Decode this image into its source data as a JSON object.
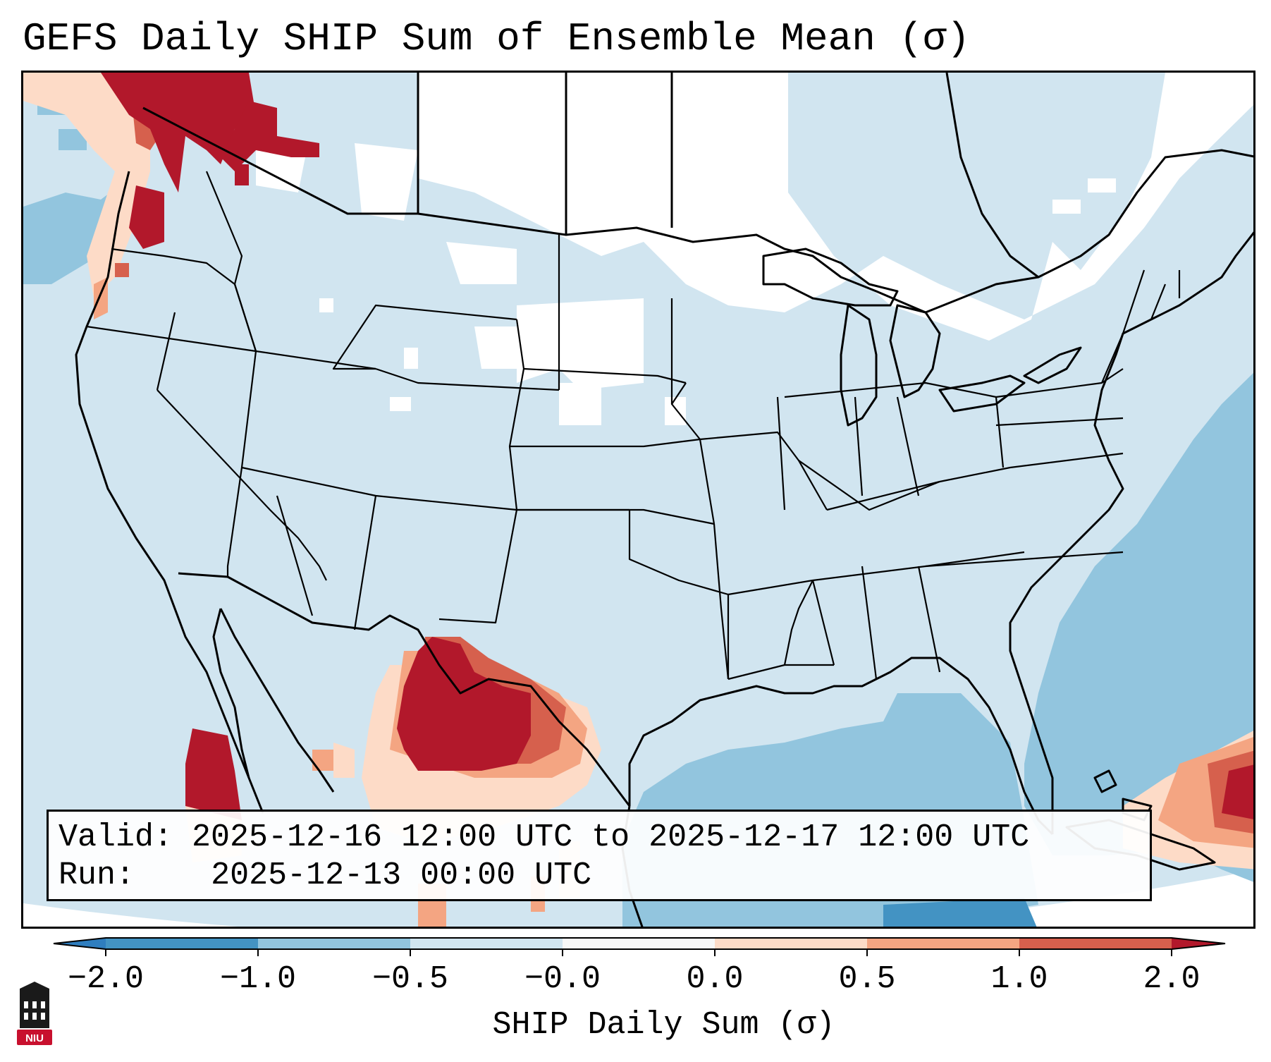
{
  "title": "GEFS Daily SHIP Sum of Ensemble Mean (σ)",
  "info": {
    "valid_label": "Valid:",
    "valid_value": "2025-12-16 12:00 UTC to 2025-12-17 12:00 UTC",
    "run_label": "Run:",
    "run_value": "2025-12-13 00:00 UTC"
  },
  "colorbar": {
    "label": "SHIP Daily Sum (σ)",
    "ticks": [
      "−2.0",
      "−1.0",
      "−0.5",
      "−0.0",
      "0.0",
      "0.5",
      "1.0",
      "2.0"
    ],
    "colors": {
      "under": "#2f7ebf",
      "bin_m2_m1": "#4393c3",
      "bin_m1_m05": "#92c5de",
      "bin_m05_0": "#d1e5f0",
      "bin_0_0": "#f7f7f7",
      "bin_0_05": "#fddbc7",
      "bin_05_1": "#f4a582",
      "bin_1_2": "#d6604d",
      "over": "#b2182b"
    }
  },
  "logo": {
    "text": "NIU",
    "color": "#c8102e"
  }
}
